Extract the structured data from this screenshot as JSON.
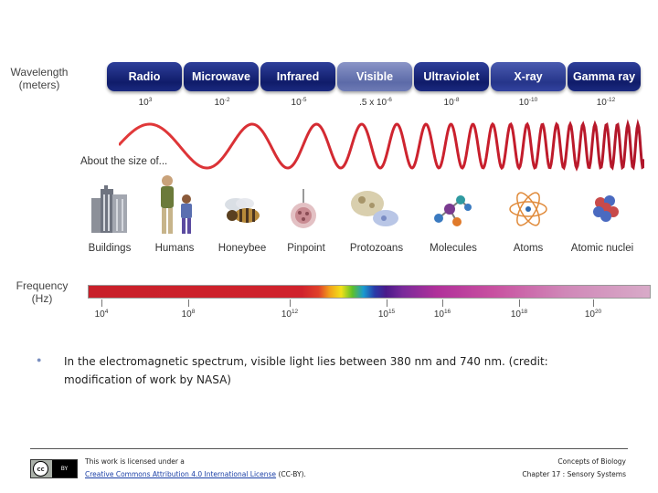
{
  "wavelength_label": [
    "Wavelength",
    "(meters)"
  ],
  "bands": [
    {
      "name": "Radio",
      "wavelength_base": "10",
      "wavelength_exp": "3"
    },
    {
      "name": "Microwave",
      "wavelength_base": "10",
      "wavelength_exp": "-2"
    },
    {
      "name": "Infrared",
      "wavelength_base": "10",
      "wavelength_exp": "-5"
    },
    {
      "name": "Visible",
      "wavelength_base": ".5 x 10",
      "wavelength_exp": "-6"
    },
    {
      "name": "Ultraviolet",
      "wavelength_base": "10",
      "wavelength_exp": "-8"
    },
    {
      "name": "X-ray",
      "wavelength_base": "10",
      "wavelength_exp": "-10"
    },
    {
      "name": "Gamma ray",
      "wavelength_base": "10",
      "wavelength_exp": "-12"
    }
  ],
  "size_label": "About the size of...",
  "objects": [
    "Buildings",
    "Humans",
    "Honeybee",
    "Pinpoint",
    "Protozoans",
    "Molecules",
    "Atoms",
    "Atomic nuclei"
  ],
  "frequency_label": [
    "Frequency",
    "(Hz)"
  ],
  "frequencies": [
    {
      "base": "10",
      "exp": "4"
    },
    {
      "base": "10",
      "exp": "8"
    },
    {
      "base": "10",
      "exp": "12"
    },
    {
      "base": "10",
      "exp": "15"
    },
    {
      "base": "10",
      "exp": "16"
    },
    {
      "base": "10",
      "exp": "18"
    },
    {
      "base": "10",
      "exp": "20"
    }
  ],
  "caption": "In the electromagnetic spectrum, visible light lies between 380 nm and 740 nm. (credit: modification of work by NASA)",
  "footer": {
    "license_prefix": "This work is licensed under a",
    "license_link": "Creative Commons Attribution 4.0 International License",
    "license_suffix": " (CC-BY).",
    "book_title": "Concepts of Biology",
    "chapter": "Chapter 17 : Sensory Systems",
    "cc_badge": "cc",
    "by_badge": "BY"
  }
}
